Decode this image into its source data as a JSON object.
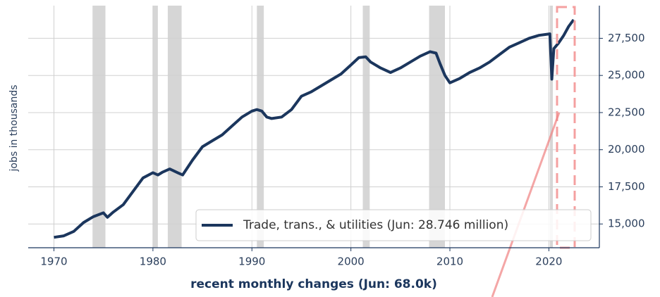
{
  "chart_data": {
    "type": "line",
    "x_label": "recent monthly changes (Jun: 68.0k)",
    "y_label": "jobs in thousands",
    "xlim": [
      1967.4,
      2025.1
    ],
    "ylim": [
      13400,
      29700
    ],
    "xticks": [
      1970,
      1980,
      1990,
      2000,
      2010,
      2020
    ],
    "yticks": [
      {
        "value": 15000,
        "label": "15,000"
      },
      {
        "value": 17500,
        "label": "17,500"
      },
      {
        "value": 20000,
        "label": "20,000"
      },
      {
        "value": 22500,
        "label": "22,500"
      },
      {
        "value": 25000,
        "label": "25,000"
      },
      {
        "value": 27500,
        "label": "27,500"
      }
    ],
    "grid": true,
    "legend": "lower right",
    "recessions": [
      [
        1973.9,
        1975.2
      ],
      [
        1980.0,
        1980.5
      ],
      [
        1981.5,
        1982.9
      ],
      [
        1990.5,
        1991.2
      ],
      [
        2001.2,
        2001.9
      ],
      [
        2007.9,
        2009.5
      ],
      [
        2020.1,
        2020.4
      ]
    ],
    "recession_color": "#d6d6d6",
    "x": [
      1970,
      1971,
      1972,
      1973,
      1974,
      1975,
      1975.4,
      1976,
      1977,
      1978,
      1979,
      1980,
      1980.5,
      1981,
      1981.7,
      1982.5,
      1983,
      1984,
      1985,
      1986,
      1987,
      1988,
      1989,
      1990,
      1990.5,
      1991,
      1991.5,
      1992,
      1993,
      1994,
      1995,
      1996,
      1997,
      1998,
      1999,
      2000,
      2000.8,
      2001.5,
      2002,
      2003,
      2004,
      2005,
      2006,
      2007,
      2008,
      2008.6,
      2009,
      2009.5,
      2010,
      2011,
      2012,
      2013,
      2014,
      2015,
      2016,
      2017,
      2018,
      2019,
      2020.1,
      2020.3,
      2020.5,
      2021,
      2021.5,
      2022,
      2022.5
    ],
    "series": [
      {
        "name": "Trade, trans., & utilities (Jun: 28.746 million)",
        "color": "#1b365d",
        "values": [
          14100,
          14200,
          14500,
          15100,
          15500,
          15750,
          15450,
          15800,
          16300,
          17200,
          18100,
          18450,
          18300,
          18500,
          18700,
          18450,
          18300,
          19300,
          20200,
          20600,
          21000,
          21600,
          22200,
          22600,
          22700,
          22600,
          22200,
          22100,
          22200,
          22700,
          23600,
          23900,
          24300,
          24700,
          25100,
          25700,
          26200,
          26250,
          25900,
          25500,
          25200,
          25500,
          25900,
          26300,
          26600,
          26500,
          25800,
          25000,
          24500,
          24800,
          25200,
          25500,
          25900,
          26400,
          26900,
          27200,
          27500,
          27700,
          27800,
          24750,
          26800,
          27200,
          27700,
          28300,
          28750
        ]
      }
    ]
  }
}
